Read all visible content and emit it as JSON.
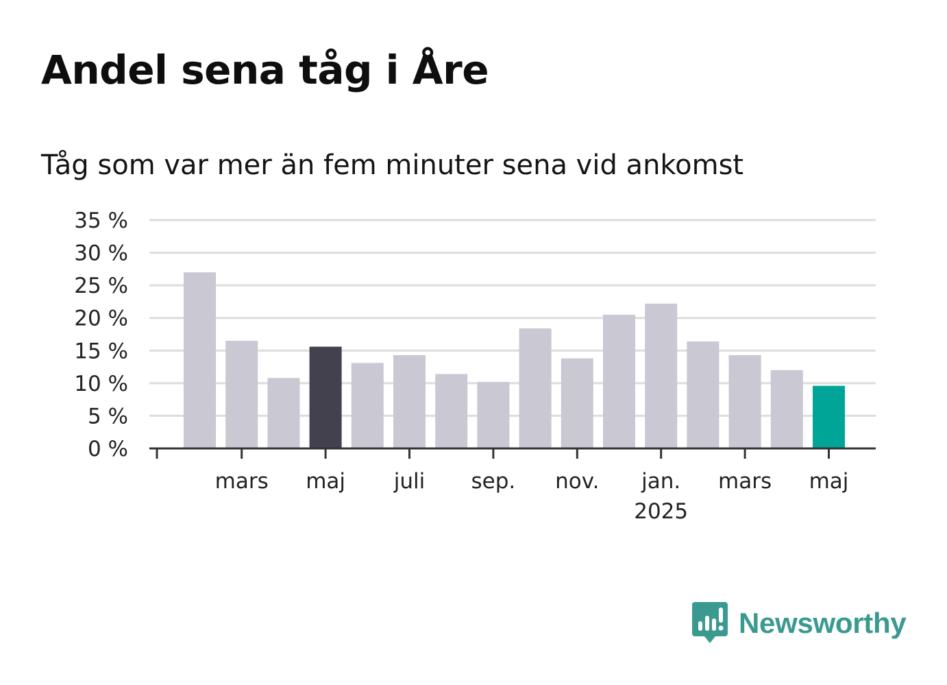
{
  "title": "Andel sena tåg i Åre",
  "subtitle": "Tåg som var mer än fem minuter sena vid ankomst",
  "brand": {
    "name": "Newsworthy",
    "logo_icon": "bar-chart-speech-bubble-icon"
  },
  "colors": {
    "default_bar": "#c9c8d3",
    "highlight_bar": "#43414e",
    "latest_bar": "#00a597",
    "grid": "#dddddd",
    "axis": "#333333",
    "brand": "#3a9a90"
  },
  "chart_data": {
    "type": "bar",
    "title": "Andel sena tåg i Åre",
    "subtitle": "Tåg som var mer än fem minuter sena vid ankomst",
    "categories": [
      "feb 2024",
      "mars 2024",
      "apr 2024",
      "maj 2024",
      "juni 2024",
      "juli 2024",
      "aug 2024",
      "sep 2024",
      "okt 2024",
      "nov 2024",
      "dec 2024",
      "jan 2025",
      "feb 2025",
      "mars 2025",
      "apr 2025",
      "maj 2025"
    ],
    "values": [
      27.0,
      16.5,
      10.8,
      15.6,
      13.1,
      14.3,
      11.4,
      10.2,
      18.4,
      13.8,
      20.5,
      22.2,
      16.4,
      14.3,
      12.0,
      9.6
    ],
    "highlight": {
      "maj 2024": "highlight_bar",
      "maj 2025": "latest_bar"
    },
    "ylim": [
      0,
      35
    ],
    "yticks": [
      0,
      5,
      10,
      15,
      20,
      25,
      30,
      35
    ],
    "ytick_labels": [
      "0 %",
      "5 %",
      "10 %",
      "15 %",
      "20 %",
      "25 %",
      "30 %",
      "35 %"
    ],
    "xtick_labels": [
      {
        "at": "mars 2024",
        "label": "mars",
        "sub": ""
      },
      {
        "at": "maj 2024",
        "label": "maj",
        "sub": ""
      },
      {
        "at": "juli 2024",
        "label": "juli",
        "sub": ""
      },
      {
        "at": "sep 2024",
        "label": "sep.",
        "sub": ""
      },
      {
        "at": "nov 2024",
        "label": "nov.",
        "sub": ""
      },
      {
        "at": "jan 2025",
        "label": "jan.",
        "sub": "2025"
      },
      {
        "at": "mars 2025",
        "label": "mars",
        "sub": ""
      },
      {
        "at": "maj 2025",
        "label": "maj",
        "sub": ""
      }
    ],
    "grid": true,
    "legend": "none"
  }
}
